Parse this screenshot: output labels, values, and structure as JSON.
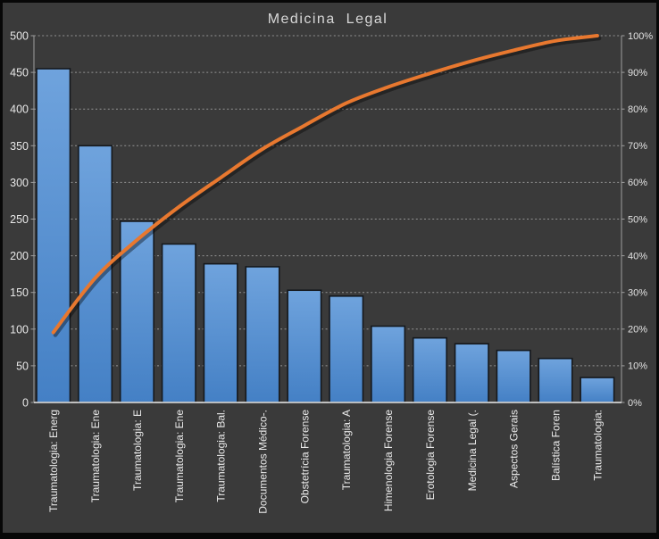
{
  "title": "Medicina Legal",
  "colors": {
    "background": "#3a3a3a",
    "frame": "#070707",
    "bar_fill_top": "#6fa3dd",
    "bar_fill_bottom": "#4480c5",
    "bar_border": "#15181c",
    "line": "#e8782f",
    "grid": "#cfcfcf",
    "axis": "#9f9f9f",
    "baseline": "#ececec",
    "tick_text": "#e8e8e8",
    "title_text": "#d8d8d8"
  },
  "chart_data": {
    "type": "bar",
    "subtype": "pareto-combo-bar-line",
    "title": "Medicina Legal",
    "categories": [
      "Traumatologia: Energ",
      "Traumatologia: Ene",
      "Traumatologia: E",
      "Traumatologia: Ene",
      "Traumatologia: Bal.",
      "Documentos Médico-.",
      "Obstetrícia Forense",
      "Traumatologia: A",
      "Himenologia Forense",
      "Erotologia Forense",
      "Medicina Legal (.",
      "Aspectos Gerais",
      "Balística Foren",
      "Traumatologia:"
    ],
    "series": [
      {
        "name": "frequency_bars",
        "type": "bar",
        "axis": "left",
        "values": [
          455,
          350,
          247,
          216,
          189,
          185,
          153,
          145,
          104,
          88,
          80,
          71,
          60,
          34
        ]
      },
      {
        "name": "cumulative_percent_line",
        "type": "line",
        "axis": "right",
        "values": [
          19.1,
          33.9,
          44.3,
          53.3,
          61.3,
          69.1,
          75.5,
          81.6,
          86.0,
          89.7,
          93.1,
          96.0,
          98.6,
          100.0
        ]
      }
    ],
    "left_axis": {
      "min": 0,
      "max": 500,
      "step": 50,
      "ticks": [
        "0",
        "50",
        "100",
        "150",
        "200",
        "250",
        "300",
        "350",
        "400",
        "450",
        "500"
      ]
    },
    "right_axis": {
      "min": 0,
      "max": 100,
      "step": 10,
      "ticks": [
        "0%",
        "10%",
        "20%",
        "30%",
        "40%",
        "50%",
        "60%",
        "70%",
        "80%",
        "90%",
        "100%"
      ]
    },
    "grid": true,
    "legend": "none",
    "x_label_rotation_degrees": 90
  }
}
